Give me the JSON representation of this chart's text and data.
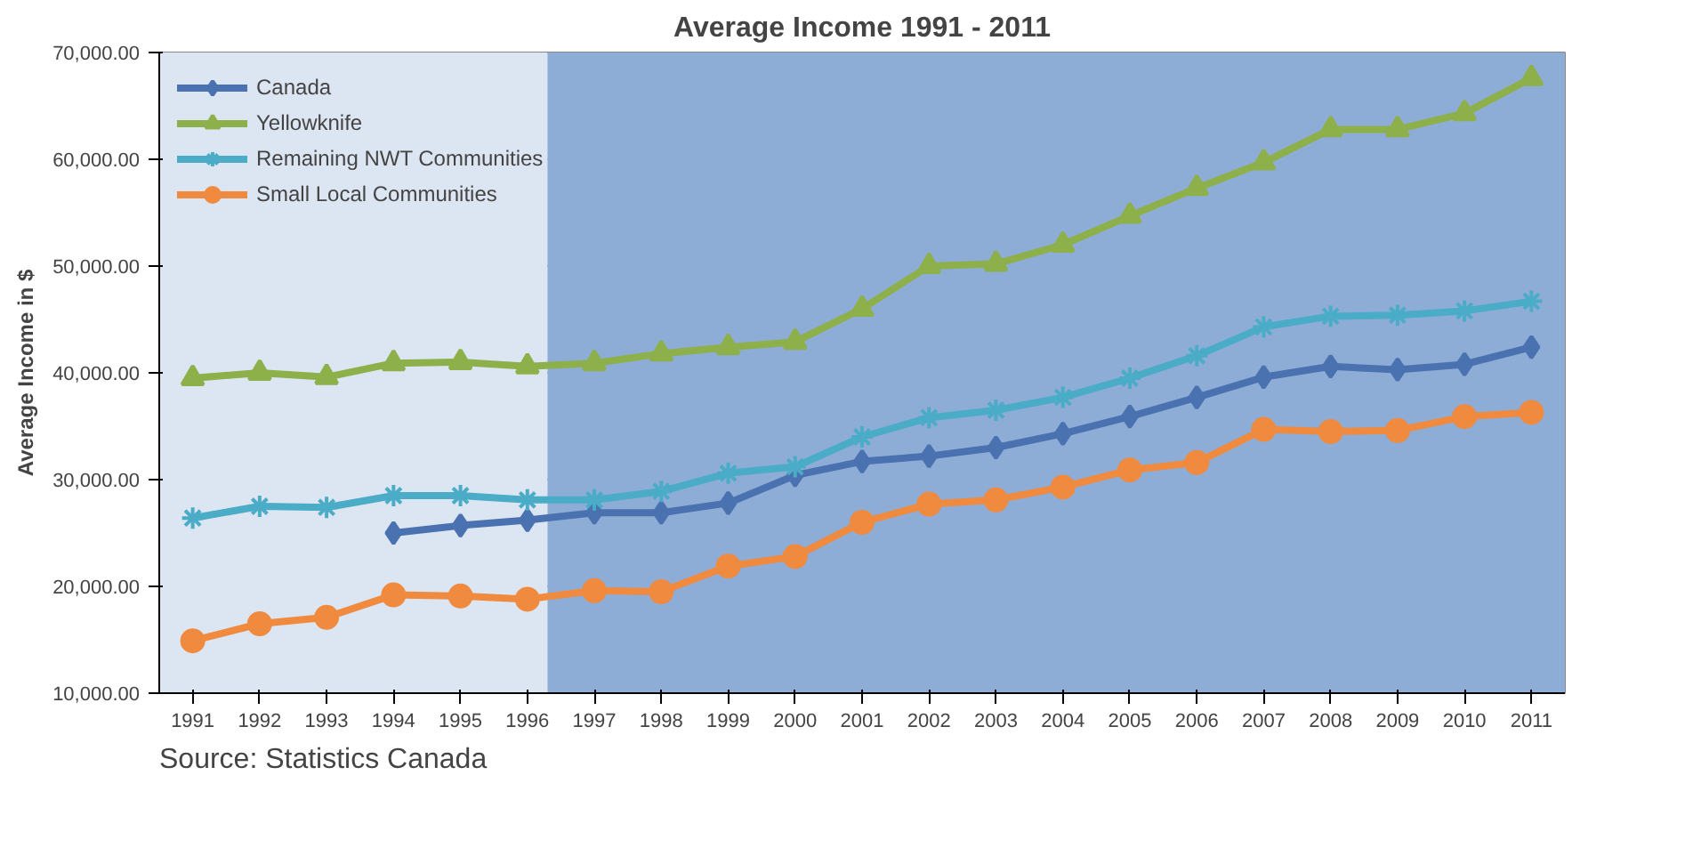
{
  "chart_data": {
    "type": "line",
    "title": "Average Income 1991 - 2011",
    "ylabel": "Average Income in $",
    "annotations": [
      "Source:  Statistics Canada"
    ],
    "x": [
      1991,
      1992,
      1993,
      1994,
      1995,
      1996,
      1997,
      1998,
      1999,
      2000,
      2001,
      2002,
      2003,
      2004,
      2005,
      2006,
      2007,
      2008,
      2009,
      2010,
      2011
    ],
    "xlim": [
      1990.5,
      2011.5
    ],
    "xticks": [
      1991,
      1992,
      1993,
      1994,
      1995,
      1996,
      1997,
      1998,
      1999,
      2000,
      2001,
      2002,
      2003,
      2004,
      2005,
      2006,
      2007,
      2008,
      2009,
      2010,
      2011
    ],
    "ylim": [
      10000,
      70000
    ],
    "yticks": [
      {
        "value": 10000,
        "label": "10,000.00"
      },
      {
        "value": 20000,
        "label": "20,000.00"
      },
      {
        "value": 30000,
        "label": "30,000.00"
      },
      {
        "value": 40000,
        "label": "40,000.00"
      },
      {
        "value": 50000,
        "label": "50,000.00"
      },
      {
        "value": 60000,
        "label": "60,000.00"
      },
      {
        "value": 70000,
        "label": "70,000.00"
      }
    ],
    "grid": "y",
    "legend": "top left",
    "bands": [
      {
        "axis": "x",
        "from": 1990.5,
        "to": 1996.3,
        "color": "#dce5f2"
      },
      {
        "axis": "x",
        "from": 1996.3,
        "to": 2011.5,
        "color": "#8eadd6"
      }
    ],
    "series": [
      {
        "name": "Canada",
        "color": "#4a72b0",
        "marker": "diamond",
        "values": [
          null,
          null,
          null,
          25000,
          25700,
          26200,
          26900,
          26900,
          27800,
          30400,
          31700,
          32200,
          33000,
          34300,
          35900,
          37700,
          39600,
          40600,
          40300,
          40800,
          42400
        ]
      },
      {
        "name": "Yellowknife",
        "color": "#8db04a",
        "marker": "triangle",
        "values": [
          39500,
          40000,
          39600,
          40900,
          41000,
          40600,
          40900,
          41800,
          42400,
          42900,
          46000,
          50000,
          50200,
          52000,
          54700,
          57300,
          59700,
          62800,
          62800,
          64300,
          67600
        ]
      },
      {
        "name": "Remaining NWT Communities",
        "color": "#4aacc6",
        "marker": "cross",
        "values": [
          26400,
          27500,
          27400,
          28500,
          28500,
          28100,
          28100,
          28900,
          30600,
          31200,
          34000,
          35800,
          36500,
          37700,
          39500,
          41600,
          44300,
          45300,
          45400,
          45800,
          46700
        ]
      },
      {
        "name": "Small Local Communities",
        "color": "#f08a3e",
        "marker": "circle",
        "values": [
          14900,
          16500,
          17100,
          19200,
          19100,
          18800,
          19600,
          19500,
          21900,
          22800,
          26000,
          27700,
          28100,
          29300,
          30900,
          31600,
          34700,
          34500,
          34600,
          35900,
          36300
        ]
      }
    ]
  }
}
